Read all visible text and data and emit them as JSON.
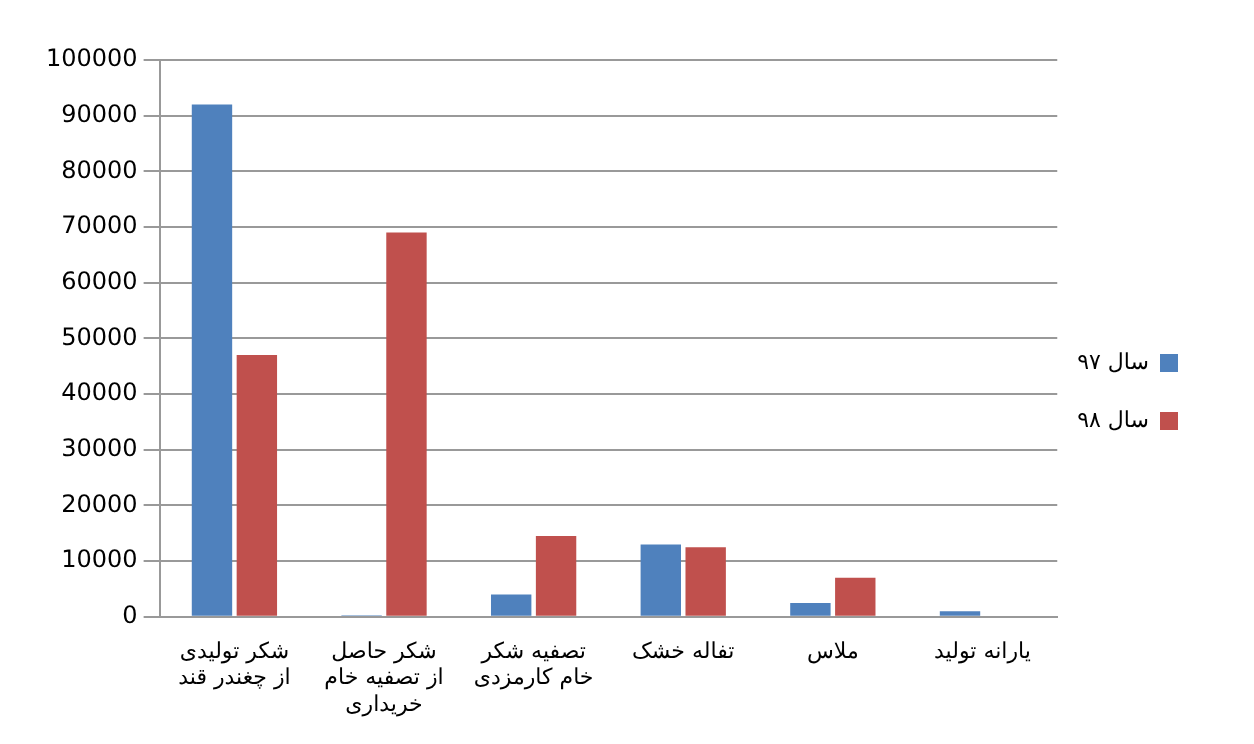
{
  "chart_data": {
    "type": "bar",
    "categories": [
      "شکر تولیدی از چغندر قند",
      "شکر حاصل از تصفیه خام خریداری",
      "تصفیه شکر خام کارمزدی",
      "تفاله خشک",
      "ملاس",
      "یارانه تولید"
    ],
    "series": [
      {
        "name": "سال ۹۷",
        "color": "#4f81bd",
        "values": [
          92000,
          300,
          4000,
          13000,
          2500,
          1000
        ]
      },
      {
        "name": "سال ۹۸",
        "color": "#c0504d",
        "values": [
          47000,
          69000,
          14500,
          12500,
          7000,
          0
        ]
      }
    ],
    "ylim": [
      0,
      100000
    ],
    "yticks": [
      0,
      10000,
      20000,
      30000,
      40000,
      50000,
      60000,
      70000,
      80000,
      90000,
      100000
    ],
    "grid": "y",
    "legend": "right"
  }
}
